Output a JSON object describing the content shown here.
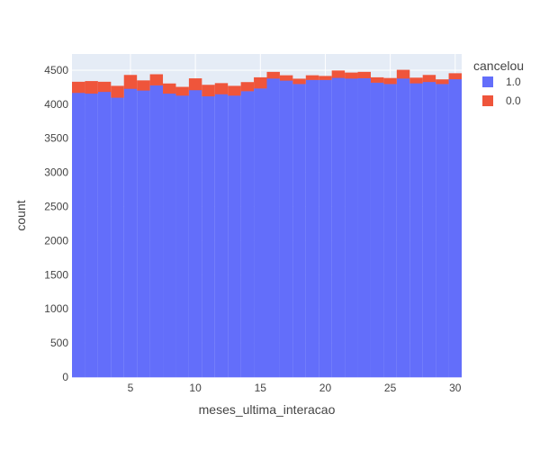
{
  "chart_data": {
    "type": "bar",
    "barmode": "stack",
    "x": [
      1,
      2,
      3,
      4,
      5,
      6,
      7,
      8,
      9,
      10,
      11,
      12,
      13,
      14,
      15,
      16,
      17,
      18,
      19,
      20,
      21,
      22,
      23,
      24,
      25,
      26,
      27,
      28,
      29,
      30
    ],
    "series": [
      {
        "name": "1.0",
        "color": "#636efa",
        "values": [
          4170,
          4160,
          4185,
          4100,
          4230,
          4205,
          4280,
          4160,
          4130,
          4210,
          4120,
          4150,
          4130,
          4195,
          4235,
          4380,
          4350,
          4300,
          4360,
          4360,
          4390,
          4380,
          4385,
          4320,
          4300,
          4380,
          4310,
          4330,
          4300,
          4370
        ]
      },
      {
        "name": "0.0",
        "color": "#ef553b",
        "values": [
          160,
          180,
          145,
          170,
          200,
          145,
          160,
          145,
          125,
          170,
          165,
          160,
          140,
          130,
          160,
          95,
          75,
          75,
          65,
          55,
          105,
          85,
          90,
          75,
          85,
          125,
          80,
          100,
          65,
          85
        ]
      }
    ],
    "xlabel": "meses_ultima_interacao",
    "ylabel": "count",
    "xlim": [
      0.5,
      30.5
    ],
    "ylim": [
      0,
      4737
    ],
    "xticks": [
      5,
      10,
      15,
      20,
      25,
      30
    ],
    "yticks": [
      0,
      500,
      1000,
      1500,
      2000,
      2500,
      3000,
      3500,
      4000,
      4500
    ],
    "grid": true,
    "plot_bgcolor": "#e5ecf6",
    "legend": {
      "title": "cancelou",
      "position": "top-right",
      "items": [
        {
          "label": "1.0",
          "color": "#636efa"
        },
        {
          "label": "0.0",
          "color": "#ef553b"
        }
      ]
    }
  }
}
